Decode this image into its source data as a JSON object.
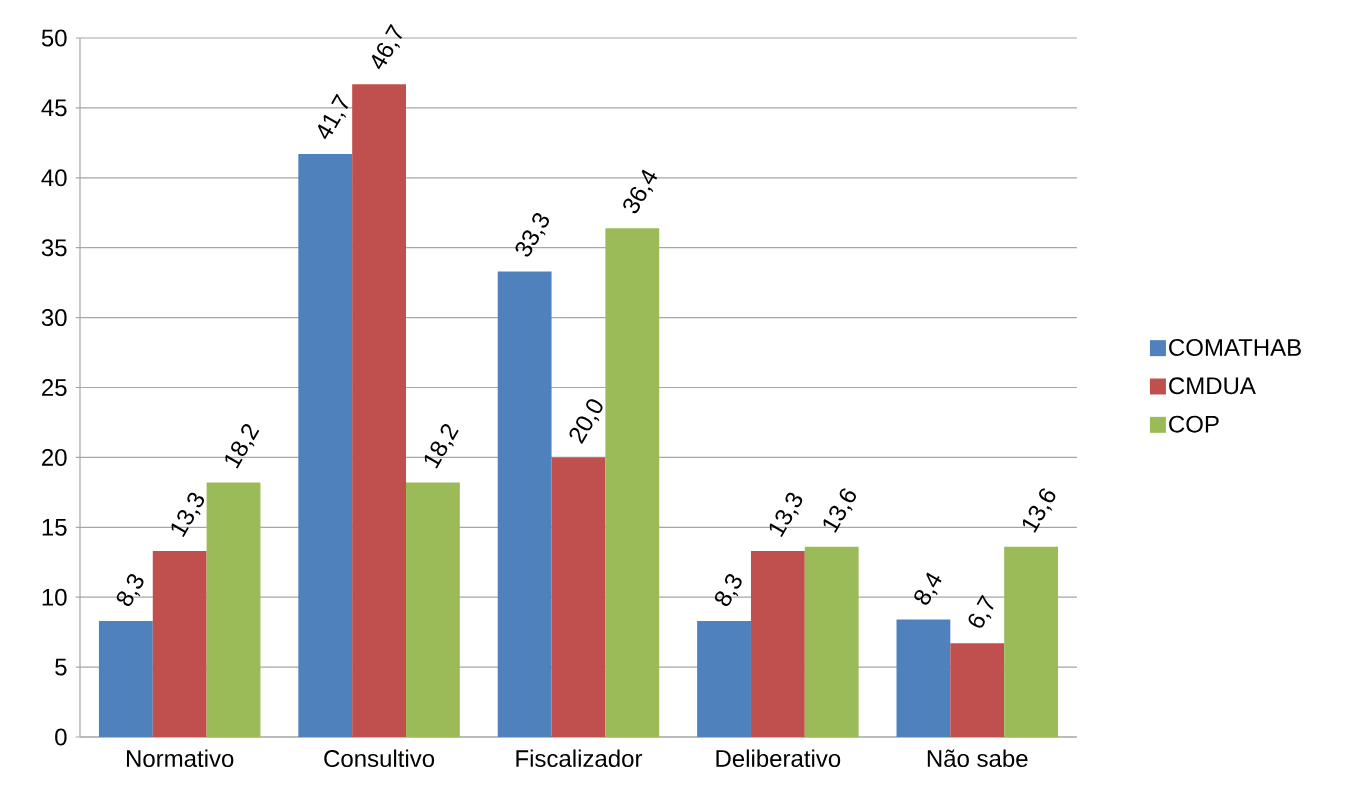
{
  "chart_data": {
    "type": "bar",
    "categories": [
      "Normativo",
      "Consultivo",
      "Fiscalizador",
      "Deliberativo",
      "Não sabe"
    ],
    "series": [
      {
        "name": "COMATHAB",
        "color": "#4f81bd",
        "values": [
          8.3,
          41.7,
          33.3,
          8.3,
          8.4
        ],
        "value_labels": [
          "8,3",
          "41,7",
          "33,3",
          "8,3",
          "8,4"
        ]
      },
      {
        "name": "CMDUA",
        "color": "#c0504d",
        "values": [
          13.3,
          46.7,
          20.0,
          13.3,
          6.7
        ],
        "value_labels": [
          "13,3",
          "46,7",
          "20,0",
          "13,3",
          "6,7"
        ]
      },
      {
        "name": "COP",
        "color": "#9bbb59",
        "values": [
          18.2,
          18.2,
          36.4,
          13.6,
          13.6
        ],
        "value_labels": [
          "18,2",
          "18,2",
          "36,4",
          "13,6",
          "13,6"
        ]
      }
    ],
    "ylim": [
      0,
      50
    ],
    "yticks": [
      0,
      5,
      10,
      15,
      20,
      25,
      30,
      35,
      40,
      45,
      50
    ],
    "grid": "y",
    "legend": "right"
  }
}
